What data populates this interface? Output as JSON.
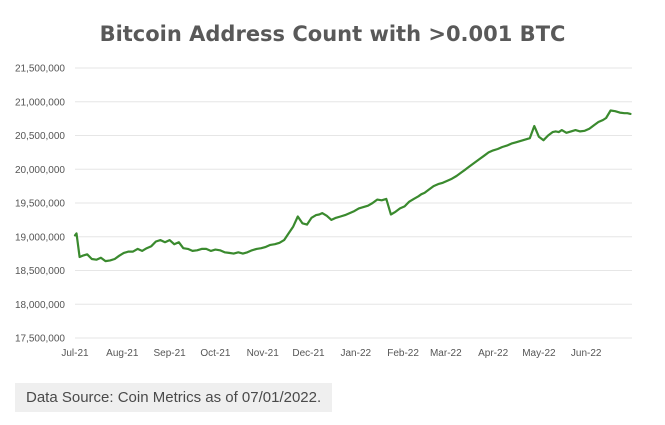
{
  "chart_data": {
    "type": "line",
    "title": "Bitcoin Address Count with >0.001 BTC",
    "xlabel": "",
    "ylabel": "",
    "ylim": [
      17500000,
      21500000
    ],
    "yticks": [
      17500000,
      18000000,
      18500000,
      19000000,
      19500000,
      20000000,
      20500000,
      21000000,
      21500000
    ],
    "ytick_labels": [
      "17,500,000",
      "18,000,000",
      "18,500,000",
      "19,000,000",
      "19,500,000",
      "20,000,000",
      "20,500,000",
      "21,000,000",
      "21,500,000"
    ],
    "xticks": [
      "2021-07-01",
      "2021-08-01",
      "2021-09-01",
      "2021-10-01",
      "2021-11-01",
      "2021-12-01",
      "2022-01-01",
      "2022-02-01",
      "2022-03-01",
      "2022-04-01",
      "2022-05-01",
      "2022-06-01"
    ],
    "xtick_labels": [
      "Jul-21",
      "Aug-21",
      "Sep-21",
      "Oct-21",
      "Nov-21",
      "Dec-21",
      "Jan-22",
      "Feb-22",
      "Mar-22",
      "Apr-22",
      "May-22",
      "Jun-22"
    ],
    "xlim": [
      "2021-07-01",
      "2022-07-01"
    ],
    "grid": true,
    "line_color": "#3a8a2e",
    "series": [
      {
        "x": [
          "2021-07-01",
          "2021-07-02",
          "2021-07-04",
          "2021-07-06",
          "2021-07-09",
          "2021-07-12",
          "2021-07-15",
          "2021-07-18",
          "2021-07-21",
          "2021-07-24",
          "2021-07-27",
          "2021-07-30",
          "2021-08-02",
          "2021-08-05",
          "2021-08-08",
          "2021-08-11",
          "2021-08-14",
          "2021-08-17",
          "2021-08-20",
          "2021-08-23",
          "2021-08-26",
          "2021-08-29",
          "2021-09-01",
          "2021-09-04",
          "2021-09-07",
          "2021-09-10",
          "2021-09-13",
          "2021-09-16",
          "2021-09-19",
          "2021-09-22",
          "2021-09-25",
          "2021-09-28",
          "2021-10-01",
          "2021-10-04",
          "2021-10-07",
          "2021-10-10",
          "2021-10-13",
          "2021-10-16",
          "2021-10-19",
          "2021-10-22",
          "2021-10-25",
          "2021-10-28",
          "2021-10-31",
          "2021-11-03",
          "2021-11-06",
          "2021-11-09",
          "2021-11-12",
          "2021-11-15",
          "2021-11-18",
          "2021-11-21",
          "2021-11-24",
          "2021-11-27",
          "2021-11-30",
          "2021-12-03",
          "2021-12-06",
          "2021-12-08",
          "2021-12-10",
          "2021-12-13",
          "2021-12-16",
          "2021-12-19",
          "2021-12-22",
          "2021-12-25",
          "2021-12-28",
          "2021-12-31",
          "2022-01-03",
          "2022-01-06",
          "2022-01-09",
          "2022-01-12",
          "2022-01-15",
          "2022-01-18",
          "2022-01-21",
          "2022-01-24",
          "2022-01-27",
          "2022-01-30",
          "2022-02-02",
          "2022-02-05",
          "2022-02-08",
          "2022-02-11",
          "2022-02-13",
          "2022-02-15",
          "2022-02-18",
          "2022-02-21",
          "2022-02-24",
          "2022-02-27",
          "2022-03-02",
          "2022-03-05",
          "2022-03-08",
          "2022-03-11",
          "2022-03-14",
          "2022-03-17",
          "2022-03-20",
          "2022-03-23",
          "2022-03-26",
          "2022-03-29",
          "2022-04-01",
          "2022-04-04",
          "2022-04-07",
          "2022-04-10",
          "2022-04-13",
          "2022-04-16",
          "2022-04-19",
          "2022-04-22",
          "2022-04-25",
          "2022-04-28",
          "2022-05-01",
          "2022-05-04",
          "2022-05-07",
          "2022-05-10",
          "2022-05-12",
          "2022-05-14",
          "2022-05-16",
          "2022-05-19",
          "2022-05-22",
          "2022-05-25",
          "2022-05-28",
          "2022-05-31",
          "2022-06-03",
          "2022-06-06",
          "2022-06-09",
          "2022-06-12",
          "2022-06-14",
          "2022-06-17",
          "2022-06-20",
          "2022-06-23",
          "2022-06-26",
          "2022-06-28",
          "2022-06-30"
        ],
        "y": [
          19020000,
          19050000,
          18700000,
          18720000,
          18740000,
          18670000,
          18660000,
          18690000,
          18640000,
          18650000,
          18670000,
          18720000,
          18760000,
          18780000,
          18780000,
          18820000,
          18790000,
          18830000,
          18860000,
          18930000,
          18950000,
          18920000,
          18950000,
          18890000,
          18920000,
          18830000,
          18820000,
          18790000,
          18800000,
          18820000,
          18820000,
          18790000,
          18810000,
          18800000,
          18770000,
          18760000,
          18750000,
          18770000,
          18750000,
          18770000,
          18800000,
          18820000,
          18830000,
          18850000,
          18880000,
          18890000,
          18910000,
          18950000,
          19050000,
          19150000,
          19300000,
          19200000,
          19180000,
          19280000,
          19320000,
          19330000,
          19350000,
          19310000,
          19250000,
          19280000,
          19300000,
          19320000,
          19350000,
          19380000,
          19420000,
          19440000,
          19460000,
          19500000,
          19550000,
          19540000,
          19560000,
          19330000,
          19370000,
          19420000,
          19450000,
          19520000,
          19560000,
          19600000,
          19630000,
          19650000,
          19700000,
          19750000,
          19780000,
          19800000,
          19830000,
          19860000,
          19900000,
          19950000,
          20000000,
          20050000,
          20100000,
          20150000,
          20200000,
          20250000,
          20280000,
          20300000,
          20330000,
          20350000,
          20380000,
          20400000,
          20420000,
          20440000,
          20460000,
          20640000,
          20480000,
          20430000,
          20500000,
          20550000,
          20560000,
          20550000,
          20580000,
          20540000,
          20560000,
          20580000,
          20560000,
          20570000,
          20600000,
          20650000,
          20700000,
          20730000,
          20760000,
          20870000,
          20860000,
          20840000,
          20830000,
          20830000,
          20820000
        ]
      }
    ]
  },
  "source": {
    "text": "Data Source: Coin Metrics as of 07/01/2022."
  }
}
